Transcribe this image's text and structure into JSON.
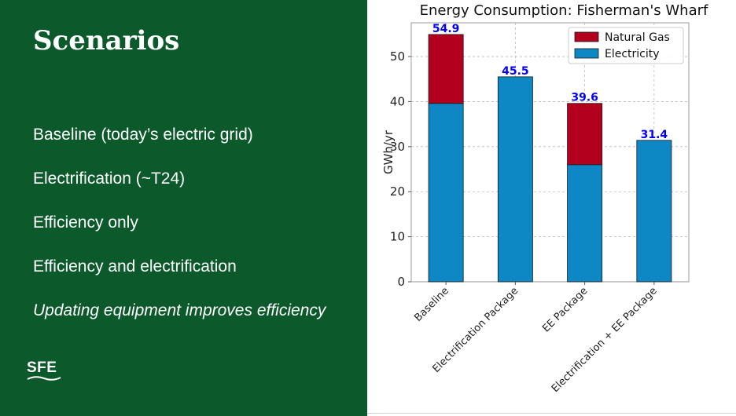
{
  "slide": {
    "title": "Scenarios",
    "scenarios": [
      "Baseline (today’s electric grid)",
      "Electrification (~T24)",
      "Efficiency only",
      "Efficiency and electrification"
    ],
    "note": "Updating equipment improves efficiency",
    "logo": "SFE",
    "background_color": "#0c5a2c"
  },
  "chart_data": {
    "type": "bar",
    "stacked": true,
    "title": "Energy Consumption: Fisherman's Wharf",
    "xlabel": "",
    "ylabel": "GWh/yr",
    "categories": [
      "Baseline",
      "Electrification Package",
      "EE Package",
      "Electrification + EE Package"
    ],
    "series": [
      {
        "name": "Electricity",
        "color": "#0d88c4",
        "values": [
          39.6,
          45.5,
          26.0,
          31.4
        ]
      },
      {
        "name": "Natural Gas",
        "color": "#b4001f",
        "values": [
          15.3,
          0.0,
          13.6,
          0.0
        ]
      }
    ],
    "totals": [
      54.9,
      45.5,
      39.6,
      31.4
    ],
    "total_label_color": "#0000ff",
    "ylim": [
      0,
      57.5
    ],
    "yticks": [
      0,
      10,
      20,
      30,
      40,
      50
    ],
    "grid": true,
    "legend": {
      "placement": "top-right",
      "entries": [
        "Natural Gas",
        "Electricity"
      ]
    }
  }
}
